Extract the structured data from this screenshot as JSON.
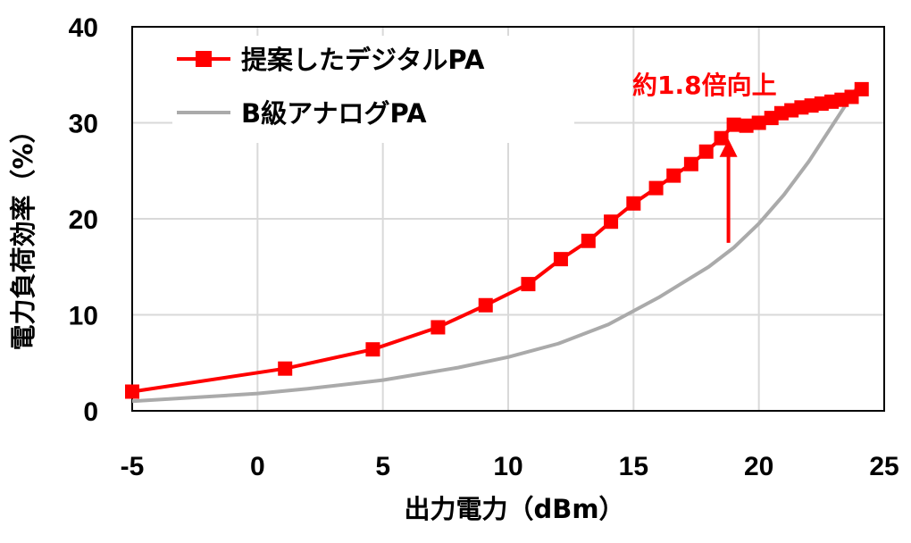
{
  "chart_data": {
    "type": "line",
    "xlabel": "出力電力（dBm）",
    "ylabel": "電力負荷効率（%）",
    "xlim": [
      -5,
      25
    ],
    "ylim": [
      0,
      40
    ],
    "xticks": [
      "-5",
      "0",
      "5",
      "10",
      "15",
      "20",
      "25"
    ],
    "yticks": [
      "0",
      "10",
      "20",
      "30",
      "40"
    ],
    "grid": true,
    "legend_position": "top-left",
    "series": [
      {
        "name": "提案したデジタルPA",
        "color": "#ff0000",
        "marker": "square",
        "x": [
          -5.0,
          1.1,
          4.6,
          7.2,
          9.1,
          10.8,
          12.1,
          13.2,
          14.1,
          15.0,
          15.9,
          16.6,
          17.3,
          17.9,
          18.5,
          19.0,
          19.5,
          20.0,
          20.5,
          20.9,
          21.3,
          21.7,
          22.1,
          22.5,
          22.9,
          23.3,
          23.7,
          24.1
        ],
        "y": [
          2.0,
          4.4,
          6.4,
          8.7,
          11.0,
          13.2,
          15.8,
          17.7,
          19.7,
          21.6,
          23.2,
          24.5,
          25.7,
          27.0,
          28.4,
          29.8,
          29.7,
          30.0,
          30.5,
          31.0,
          31.3,
          31.6,
          31.8,
          32.0,
          32.2,
          32.4,
          32.7,
          33.5
        ]
      },
      {
        "name": "B級アナログPA",
        "color": "#aaaaaa",
        "x": [
          -5,
          0,
          2,
          5,
          8,
          10,
          12,
          14,
          16,
          18,
          19,
          20,
          21,
          22,
          23,
          24
        ],
        "y": [
          1.0,
          1.8,
          2.3,
          3.2,
          4.5,
          5.6,
          7.0,
          9.0,
          11.8,
          15.0,
          17.0,
          19.5,
          22.5,
          26.0,
          30.0,
          34.0
        ]
      }
    ],
    "annotations": [
      {
        "text": "約1.8倍向上",
        "color": "#ff0000",
        "arrow_x": 19,
        "arrow_from_y": 17.5,
        "arrow_to_y": 28.3
      }
    ]
  }
}
